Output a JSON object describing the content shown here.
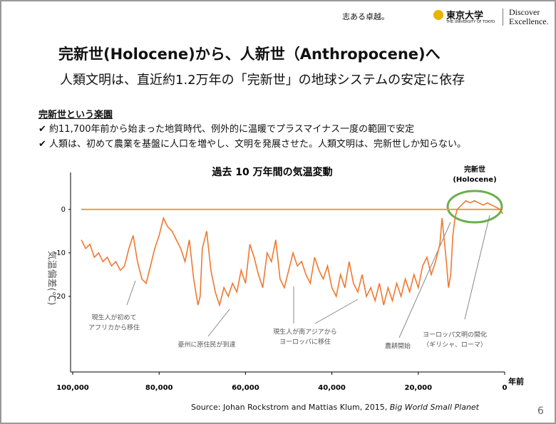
{
  "logo": {
    "motto": "志ある卓越。",
    "univ": "東京大学",
    "univ_en": "THE UNIVERSITY OF TOKYO",
    "tagline_1": "Discover",
    "tagline_2": "Excellence."
  },
  "title": "完新世(Holocene)から、人新世（Anthropocene)へ",
  "subtitle": "人類文明は、直近約1.2万年の「完新世」の地球システムの安定に依存",
  "section": {
    "heading": "完新世という楽園",
    "bullets": [
      "約11,700年前から始まった地質時代、例外的に温暖でプラスマイナス一度の範囲で安定",
      "人類は、初めて農業を基盤に人口を増やし、文明を発展させた。人類文明は、完新世しか知らない。"
    ]
  },
  "chart_data": {
    "type": "line",
    "title": "過去 10 万年間の気温変動",
    "y_label": "気温偏差(℃)",
    "x_label": "年前",
    "annotations": {
      "holocene": [
        "完新世",
        "(Holocene)"
      ],
      "africa": [
        "現生人が初めて",
        "アフリカから移住"
      ],
      "australia": [
        "豪州に原住民が到達"
      ],
      "europe": [
        "現生人が南アジアから",
        "ヨーロッパに移住"
      ],
      "agriculture": [
        "農耕開始"
      ],
      "civilization": [
        "ヨーロッパ文明の開化",
        "（ギリシャ、ローマ）"
      ]
    },
    "source_text": "Source: Johan Rockstrom and Mattias Klum, 2015, ",
    "source_italic": "Big World Small Planet",
    "xlim": [
      100000,
      0
    ],
    "ylim": [
      -37.4,
      8.5
    ],
    "xticks": [
      {
        "value": 100000,
        "label": "100,000"
      },
      {
        "value": 80000,
        "label": "80,000"
      },
      {
        "value": 60000,
        "label": "60,000"
      },
      {
        "value": 40000,
        "label": "40,000"
      },
      {
        "value": 20000,
        "label": "20,000"
      },
      0
    ],
    "yticks": [
      0,
      -10,
      -20
    ],
    "hline": 0,
    "hline_color": "#f0a030",
    "series": [
      {
        "color": "#f07830",
        "x": [
          98000,
          97000,
          96000,
          95000,
          94000,
          93000,
          92000,
          91000,
          90000,
          89000,
          88000,
          87000,
          86000,
          85000,
          84000,
          83000,
          82000,
          81000,
          80000,
          79000,
          78000,
          77000,
          76000,
          75000,
          74000,
          73000,
          72000,
          71000,
          70500,
          70000,
          69000,
          68000,
          67000,
          66000,
          65000,
          64000,
          63000,
          62000,
          61000,
          60000,
          59000,
          58000,
          57000,
          56000,
          55000,
          54000,
          53000,
          52000,
          51000,
          50000,
          49000,
          48000,
          47000,
          46000,
          45000,
          44000,
          43000,
          42000,
          41000,
          40000,
          39000,
          38000,
          37000,
          36000,
          35000,
          34000,
          33000,
          32000,
          31000,
          30000,
          29000,
          28000,
          27000,
          26000,
          25000,
          24000,
          23000,
          22000,
          21000,
          20000,
          19000,
          18000,
          17000,
          16000,
          15000,
          14500,
          14000,
          13500,
          13000,
          12500,
          12000,
          11500,
          11000,
          10000,
          9000,
          8000,
          7000,
          6000,
          5000,
          4000,
          3000,
          2000,
          1000,
          500
        ],
        "values": [
          -7,
          -9,
          -8,
          -11,
          -10,
          -12,
          -11,
          -13,
          -12,
          -14,
          -13,
          -9,
          -6,
          -12,
          -16,
          -17,
          -13,
          -9,
          -6,
          -2,
          -4,
          -5,
          -7,
          -9,
          -12,
          -7,
          -16,
          -22,
          -20,
          -9,
          -5,
          -14,
          -19,
          -22,
          -18,
          -20,
          -17,
          -19,
          -14,
          -17,
          -8,
          -11,
          -15,
          -18,
          -10,
          -12,
          -7,
          -16,
          -18,
          -14,
          -10,
          -13,
          -12,
          -15,
          -17,
          -11,
          -14,
          -16,
          -13,
          -18,
          -20,
          -15,
          -18,
          -12,
          -17,
          -19,
          -15,
          -20,
          -18,
          -21,
          -17,
          -22,
          -18,
          -21,
          -17,
          -20,
          -16,
          -19,
          -15,
          -18,
          -13,
          -11,
          -15,
          -12,
          -8,
          -2,
          -7,
          -12,
          -18,
          -15,
          -6,
          -2,
          0,
          1,
          2,
          1.5,
          2,
          1.5,
          1,
          1.5,
          1,
          0.5,
          0,
          -1
        ]
      }
    ]
  },
  "page_number": "6"
}
